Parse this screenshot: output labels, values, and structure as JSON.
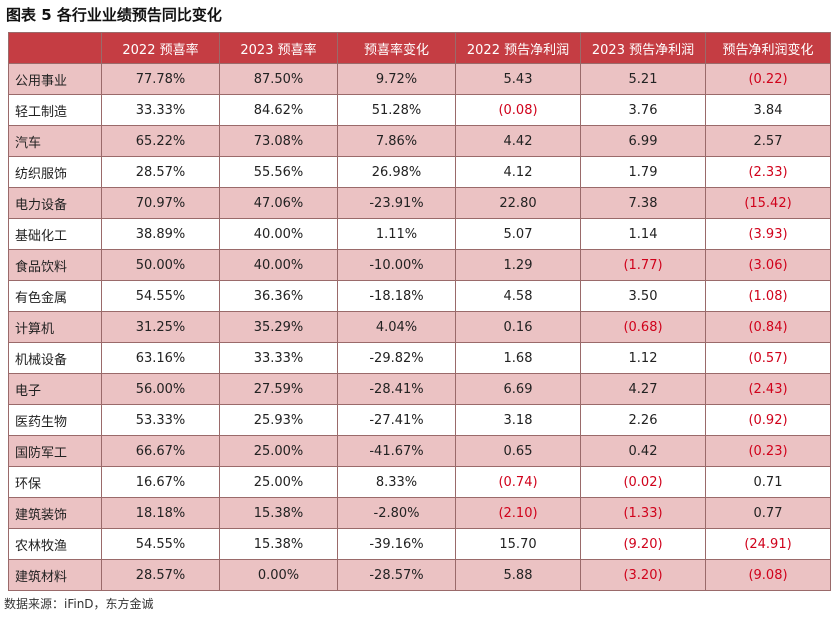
{
  "title": "图表 5  各行业业绩预告同比变化",
  "source": "数据来源：iFinD，东方金诚",
  "colors": {
    "header_bg": "#c53d43",
    "header_text": "#ffffff",
    "stripe_bg": "#ebc2c3",
    "negative_text": "#d0021b"
  },
  "columns": [
    "",
    "2022 预喜率",
    "2023 预喜率",
    "预喜率变化",
    "2022 预告净利润",
    "2023 预告净利润",
    "预告净利润变化"
  ],
  "rows": [
    [
      "公用事业",
      "77.78%",
      "87.50%",
      "9.72%",
      "5.43",
      "5.21",
      "(0.22)"
    ],
    [
      "轻工制造",
      "33.33%",
      "84.62%",
      "51.28%",
      "(0.08)",
      "3.76",
      "3.84"
    ],
    [
      "汽车",
      "65.22%",
      "73.08%",
      "7.86%",
      "4.42",
      "6.99",
      "2.57"
    ],
    [
      "纺织服饰",
      "28.57%",
      "55.56%",
      "26.98%",
      "4.12",
      "1.79",
      "(2.33)"
    ],
    [
      "电力设备",
      "70.97%",
      "47.06%",
      "-23.91%",
      "22.80",
      "7.38",
      "(15.42)"
    ],
    [
      "基础化工",
      "38.89%",
      "40.00%",
      "1.11%",
      "5.07",
      "1.14",
      "(3.93)"
    ],
    [
      "食品饮料",
      "50.00%",
      "40.00%",
      "-10.00%",
      "1.29",
      "(1.77)",
      "(3.06)"
    ],
    [
      "有色金属",
      "54.55%",
      "36.36%",
      "-18.18%",
      "4.58",
      "3.50",
      "(1.08)"
    ],
    [
      "计算机",
      "31.25%",
      "35.29%",
      "4.04%",
      "0.16",
      "(0.68)",
      "(0.84)"
    ],
    [
      "机械设备",
      "63.16%",
      "33.33%",
      "-29.82%",
      "1.68",
      "1.12",
      "(0.57)"
    ],
    [
      "电子",
      "56.00%",
      "27.59%",
      "-28.41%",
      "6.69",
      "4.27",
      "(2.43)"
    ],
    [
      "医药生物",
      "53.33%",
      "25.93%",
      "-27.41%",
      "3.18",
      "2.26",
      "(0.92)"
    ],
    [
      "国防军工",
      "66.67%",
      "25.00%",
      "-41.67%",
      "0.65",
      "0.42",
      "(0.23)"
    ],
    [
      "环保",
      "16.67%",
      "25.00%",
      "8.33%",
      "(0.74)",
      "(0.02)",
      "0.71"
    ],
    [
      "建筑装饰",
      "18.18%",
      "15.38%",
      "-2.80%",
      "(2.10)",
      "(1.33)",
      "0.77"
    ],
    [
      "农林牧渔",
      "54.55%",
      "15.38%",
      "-39.16%",
      "15.70",
      "(9.20)",
      "(24.91)"
    ],
    [
      "建筑材料",
      "28.57%",
      "0.00%",
      "-28.57%",
      "5.88",
      "(3.20)",
      "(9.08)"
    ]
  ]
}
